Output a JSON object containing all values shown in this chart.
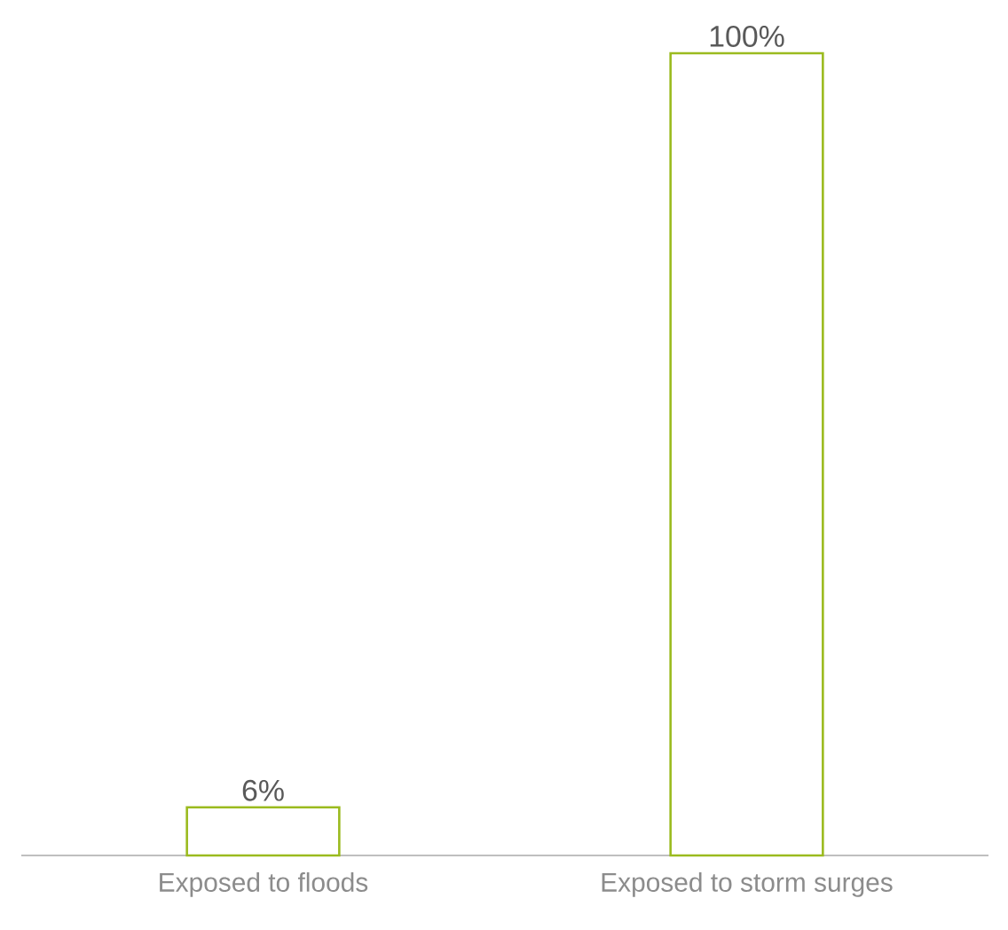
{
  "chart_data": {
    "type": "bar",
    "categories": [
      "Exposed to floods",
      "Exposed to storm surges"
    ],
    "values": [
      6,
      100
    ],
    "value_labels": [
      "6%",
      "100%"
    ],
    "color": "#9bbb1f"
  }
}
